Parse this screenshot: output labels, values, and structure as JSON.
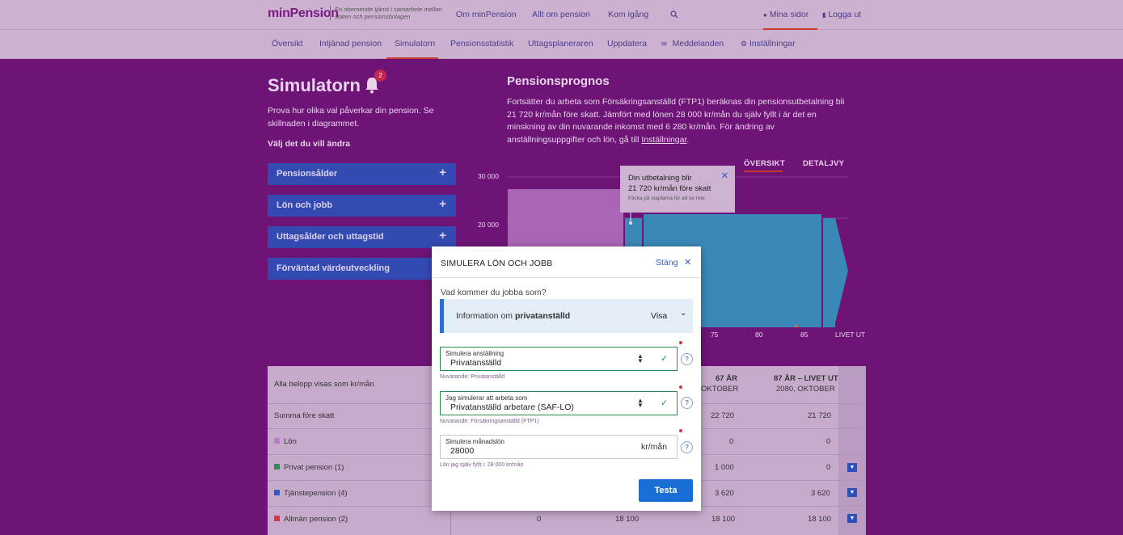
{
  "header": {
    "logo": "minPension",
    "tagline": "En oberoende tjänst i samarbete mellan staten och pensionsbolagen",
    "nav": [
      "Om minPension",
      "Allt om pension",
      "Kom igång"
    ],
    "search_icon": "search-icon",
    "mina_sidor": "Mina sidor",
    "logga_ut": "Logga ut"
  },
  "subnav": {
    "items": [
      "Översikt",
      "Intjänad pension",
      "Simulatorn",
      "Pensionsstatistik",
      "Uttagsplaneraren",
      "Uppdatera",
      "Meddelanden",
      "Inställningar"
    ],
    "active": "Simulatorn"
  },
  "left": {
    "title": "Simulatorn",
    "badge": "2",
    "description": "Prova hur olika val påverkar din pension. Se skillnaden i diagrammet.",
    "choose": "Välj det du vill ändra",
    "accordion": [
      "Pensionsålder",
      "Lön och jobb",
      "Uttagsålder och uttagstid",
      "Förväntad värdeutveckling"
    ]
  },
  "prognos": {
    "title": "Pensionsprognos",
    "text": "Fortsätter du arbeta som Försäkringsanställd (FTP1) beräknas din pensionsutbetalning bli 21 720 kr/mån före skatt. Jämfört med lönen 28 000 kr/mån du själv fyllt i är det en minskning av din nuvarande inkomst med 6 280 kr/mån. För ändring av anställningsuppgifter och lön, gå till",
    "link": "Inställningar",
    "link_suffix": ".",
    "tab_overview": "ÖVERSIKT",
    "tab_detail": "DETALJVY"
  },
  "chart_data": {
    "type": "area",
    "y_ticks": [
      "30 000",
      "20 000"
    ],
    "x_ticks": [
      "75",
      "80",
      "85",
      "LIVET UT"
    ],
    "ylim": [
      0,
      30000
    ],
    "series": [
      {
        "name": "Lön",
        "values": [
          28000
        ],
        "color": "#b87fc2"
      },
      {
        "name": "Tjänstepension",
        "values": [
          22720,
          21720
        ],
        "color": "#3a88b8"
      }
    ],
    "tooltip": {
      "line1": "Din utbetalning blir",
      "line2": "21 720 kr/mån före skatt",
      "line3": "Klicka på staplarna för att se mer."
    }
  },
  "table": {
    "caption": "Alla belopp visas som kr/mån",
    "col_67": "67 ÅR",
    "col_67_sub": "OKTOBER",
    "col_87": "87 ÅR – LIVET UT",
    "col_87_sub": "2080, OKTOBER",
    "rows": [
      {
        "label": "Summa före skatt",
        "c1": "",
        "c2": "",
        "v67": "22 720",
        "v87": "21 720"
      },
      {
        "label": "Lön",
        "c1": "",
        "c2": "",
        "v67": "0",
        "v87": "0",
        "color": "#b87fc2"
      },
      {
        "label": "Privat pension (1)",
        "c1": "",
        "c2": "",
        "v67": "1 000",
        "v87": "0",
        "color": "#2d8a5a"
      },
      {
        "label": "Tjänstepension (4)",
        "c1": "",
        "c2": "",
        "v67": "3 620",
        "v87": "3 620",
        "color": "#2f5bc7"
      },
      {
        "label": "Allmän pension (2)",
        "c1": "0",
        "c2": "18 100",
        "v67": "18 100",
        "v87": "18 100",
        "color": "#d4334a"
      }
    ]
  },
  "modal": {
    "title": "SIMULERA LÖN OCH JOBB",
    "close": "Stäng",
    "question": "Vad kommer du jobba som?",
    "info_prefix": "Information om",
    "info_bold": "privatanställd",
    "info_show": "Visa",
    "field1_label": "Simulera anställning",
    "field1_value": "Privatanställd",
    "field1_hint": "Nuvarande: Privatanställd",
    "field2_label": "Jag simulerar att arbeta som",
    "field2_value": "Privatanställd arbetare (SAF-LO)",
    "field2_hint": "Nuvarande: Försäkringsanställd (FTP1)",
    "field3_label": "Simulera månadslön",
    "field3_value": "28000",
    "field3_unit": "kr/mån",
    "field3_hint": "Lön jag själv fyllt i: 28 000 kr/mån",
    "submit": "Testa"
  }
}
